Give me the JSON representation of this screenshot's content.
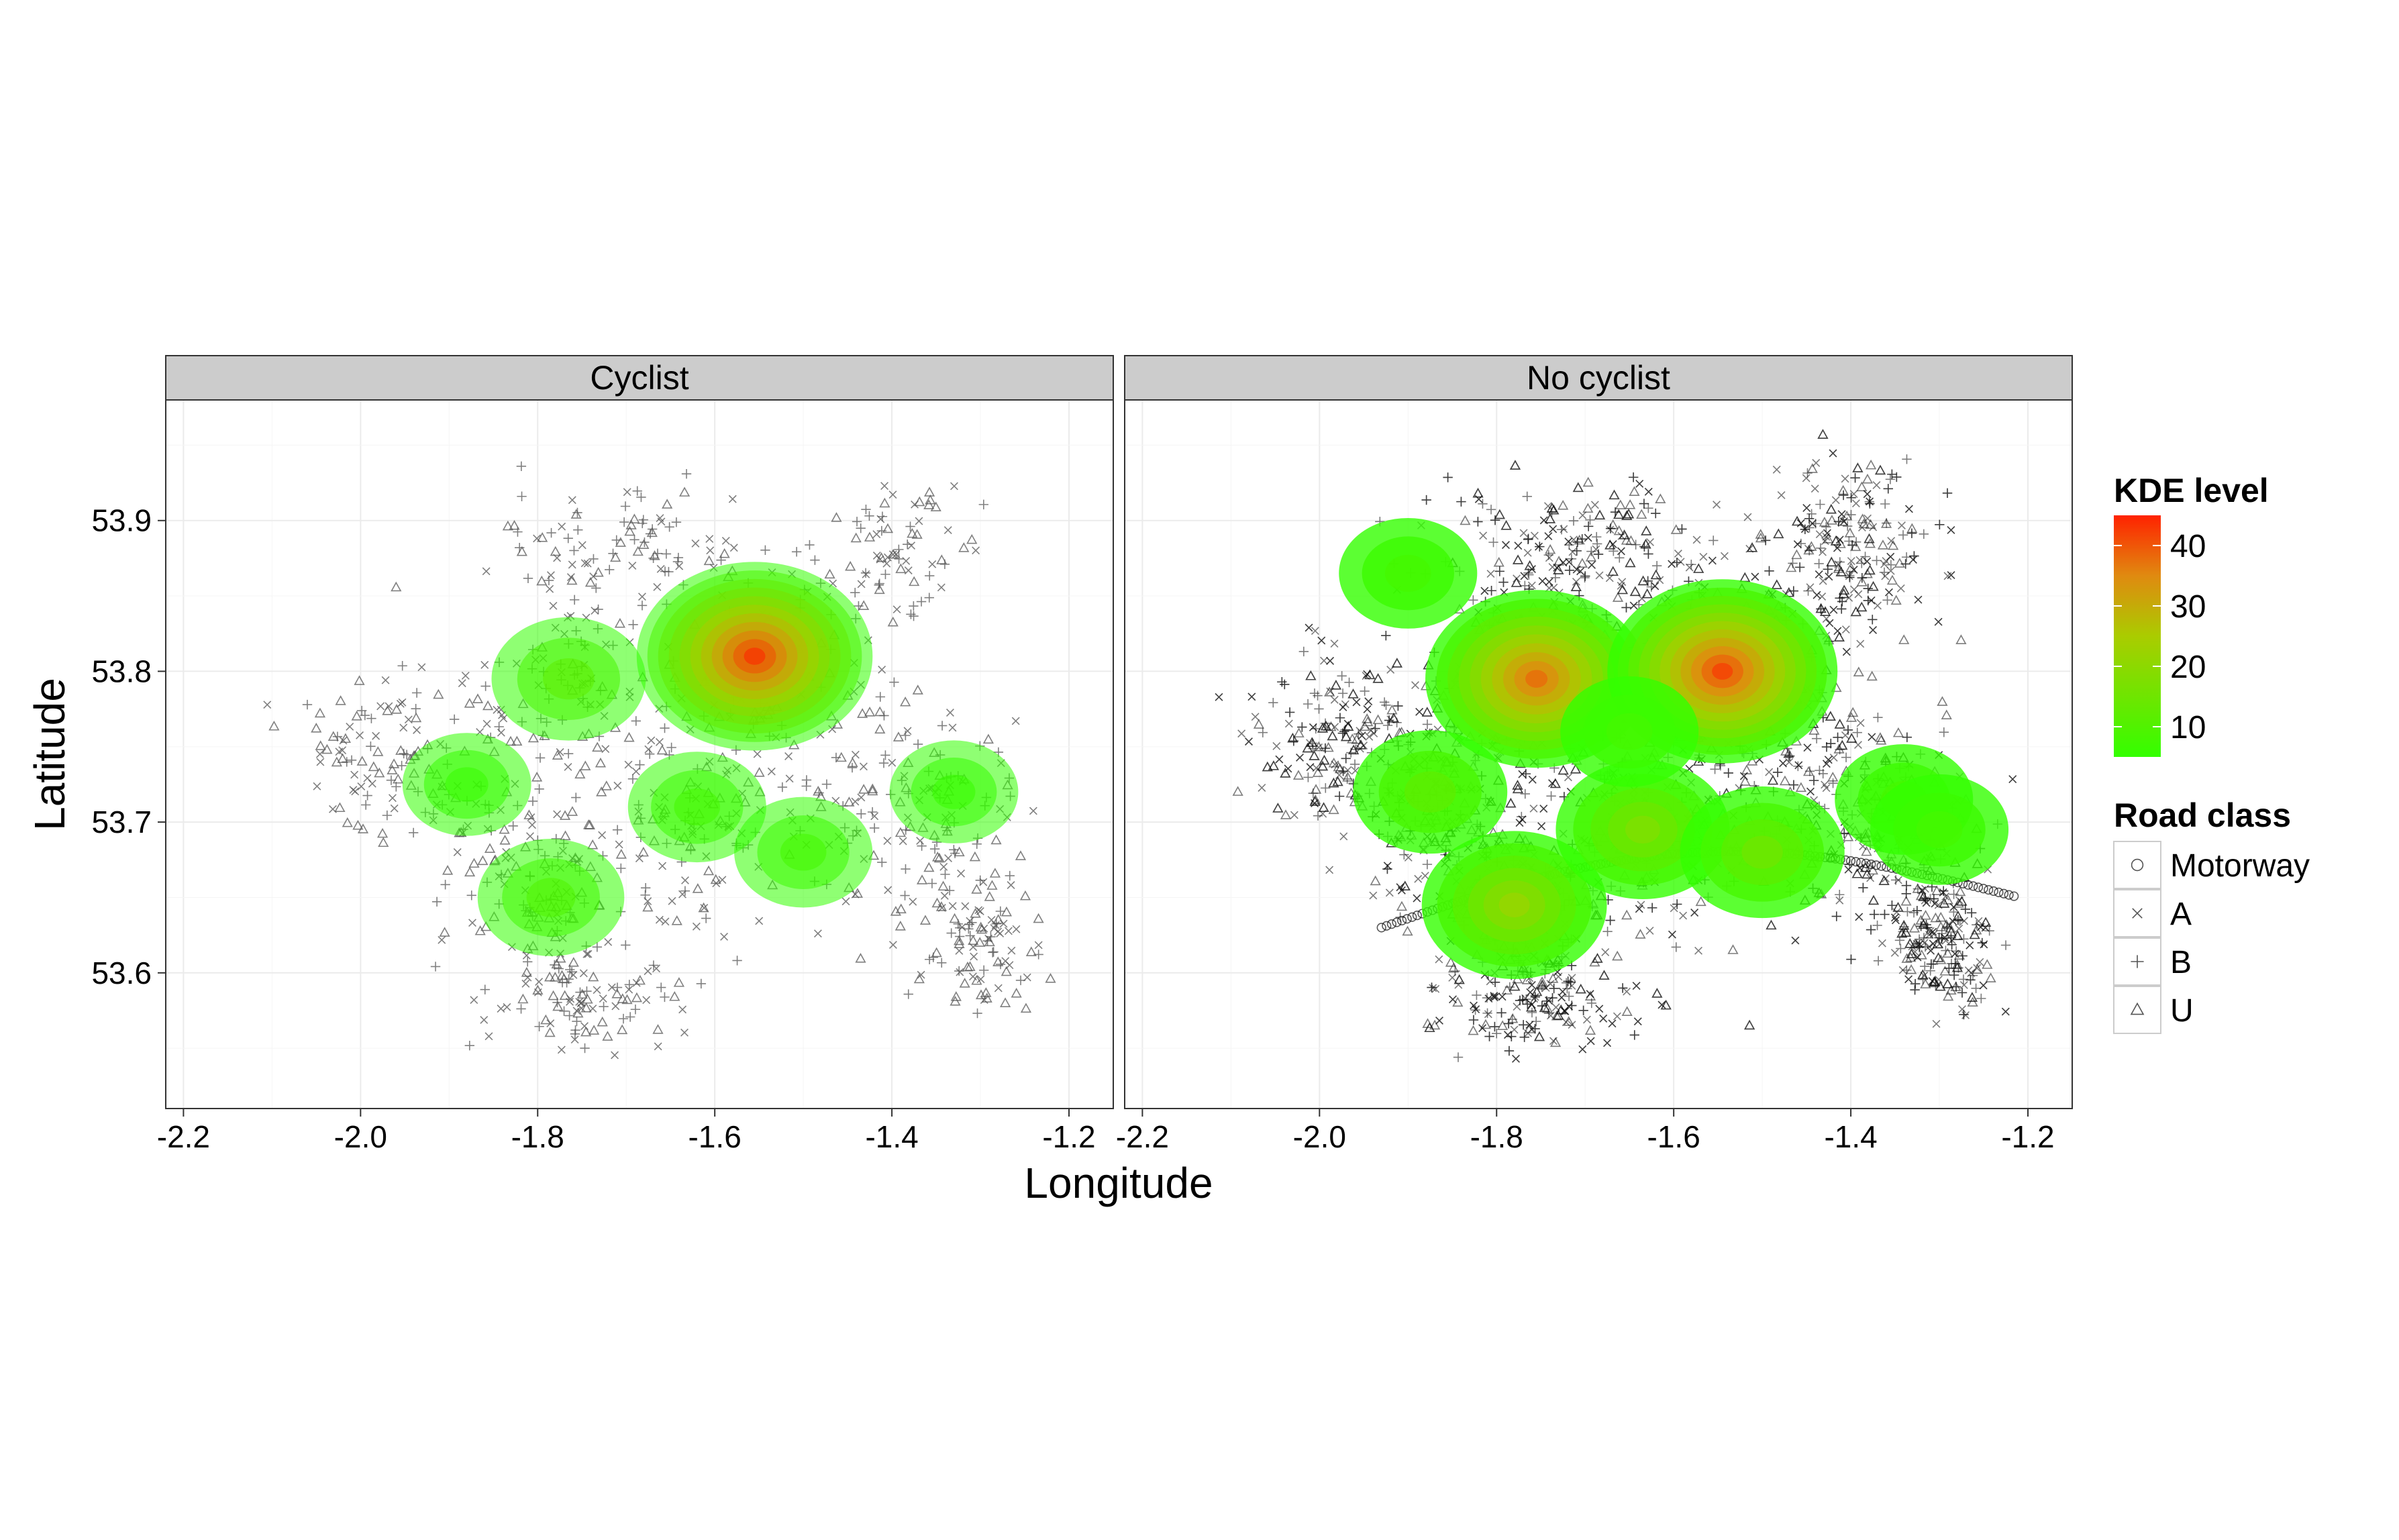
{
  "chart_data": {
    "type": "scatter",
    "subtype": "faceted scatter with 2D kernel density estimate contours",
    "xlabel": "Longitude",
    "ylabel": "Latitude",
    "xlim": [
      -2.22,
      -1.15
    ],
    "ylim": [
      53.51,
      53.98
    ],
    "x_ticks": [
      -2.2,
      -2.0,
      -1.8,
      -1.6,
      -1.4,
      -1.2
    ],
    "x_tick_labels": [
      "-2.2",
      "-2.0",
      "-1.8",
      "-1.6",
      "-1.4",
      "-1.2"
    ],
    "y_ticks": [
      53.6,
      53.7,
      53.8,
      53.9
    ],
    "y_tick_labels": [
      "53.6",
      "53.7",
      "53.8",
      "53.9"
    ],
    "grid": true,
    "facets": [
      {
        "label": "Cyclist",
        "density_peaks": [
          {
            "x": -1.555,
            "y": 53.81,
            "level": 45
          },
          {
            "x": -1.765,
            "y": 53.795,
            "level": 12
          },
          {
            "x": -1.785,
            "y": 53.65,
            "level": 10
          },
          {
            "x": -1.62,
            "y": 53.71,
            "level": 8
          },
          {
            "x": -1.5,
            "y": 53.68,
            "level": 8
          },
          {
            "x": -1.88,
            "y": 53.725,
            "level": 6
          },
          {
            "x": -1.33,
            "y": 53.72,
            "level": 6
          }
        ]
      },
      {
        "label": "No cyclist",
        "density_peaks": [
          {
            "x": -1.755,
            "y": 53.795,
            "level": 38
          },
          {
            "x": -1.545,
            "y": 53.8,
            "level": 42
          },
          {
            "x": -1.78,
            "y": 53.645,
            "level": 22
          },
          {
            "x": -1.635,
            "y": 53.695,
            "level": 18
          },
          {
            "x": -1.5,
            "y": 53.68,
            "level": 15
          },
          {
            "x": -1.875,
            "y": 53.72,
            "level": 12
          },
          {
            "x": -1.9,
            "y": 53.865,
            "level": 8
          },
          {
            "x": -1.34,
            "y": 53.715,
            "level": 8
          },
          {
            "x": -1.3,
            "y": 53.695,
            "level": 8
          },
          {
            "x": -1.65,
            "y": 53.76,
            "level": 8
          }
        ]
      }
    ],
    "legend_kde": {
      "title": "KDE level",
      "breaks": [
        10,
        20,
        30,
        40
      ],
      "break_labels": [
        "10",
        "20",
        "30",
        "40"
      ],
      "range": [
        5,
        45
      ],
      "low_color": "#33ff00",
      "high_color": "#ff2200"
    },
    "legend_road": {
      "title": "Road class",
      "items": [
        {
          "label": "Motorway",
          "shape": "circle-icon"
        },
        {
          "label": "A",
          "shape": "cross-icon"
        },
        {
          "label": "B",
          "shape": "plus-icon"
        },
        {
          "label": "U",
          "shape": "triangle-icon"
        }
      ]
    },
    "legend_placement": "right"
  }
}
